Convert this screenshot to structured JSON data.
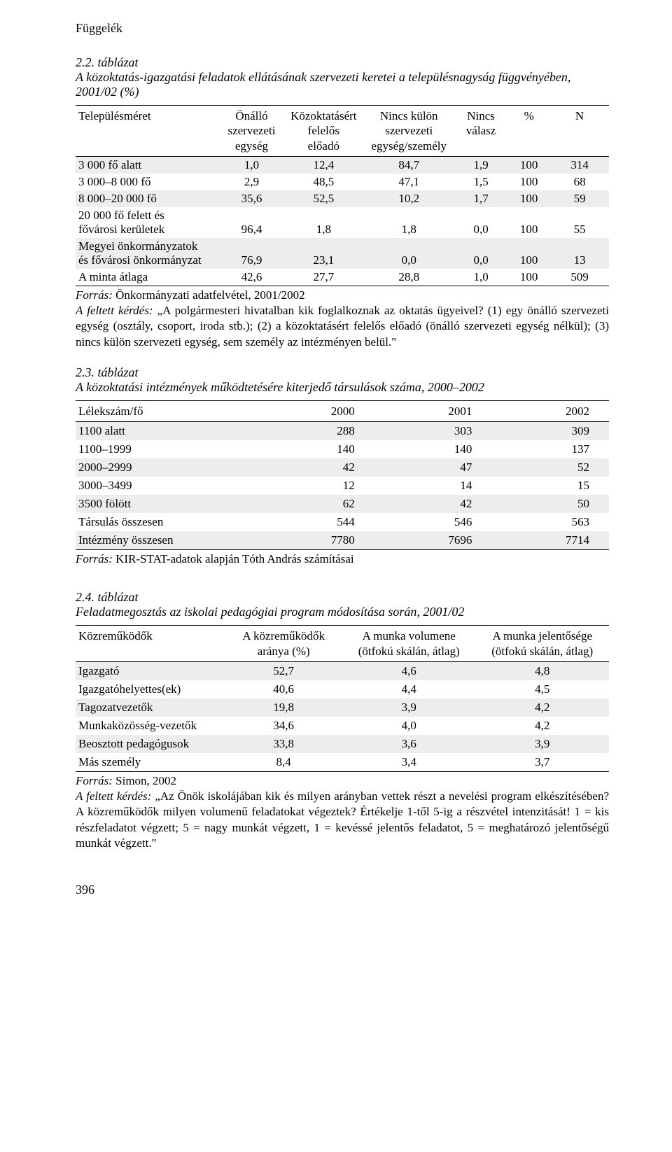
{
  "running_head": "Függelék",
  "page_number": "396",
  "table1": {
    "label": "2.2. táblázat",
    "title": "A közoktatás-igazgatási feladatok ellátásának szervezeti keretei a településnagyság függvényében, 2001/02 (%)",
    "columns": [
      "Településméret",
      "Önálló\nszervezeti\negység",
      "Közoktatásért\nfelelős\nelőadó",
      "Nincs külön\nszervezeti\negység/személy",
      "Nincs\nválasz",
      "%",
      "N"
    ],
    "rows": [
      {
        "label": "3 000 fő alatt",
        "v": [
          "1,0",
          "12,4",
          "84,7",
          "1,9",
          "100",
          "314"
        ],
        "shade": true
      },
      {
        "label": "3 000–8 000 fő",
        "v": [
          "2,9",
          "48,5",
          "47,1",
          "1,5",
          "100",
          "68"
        ],
        "shade": false
      },
      {
        "label": "8 000–20 000 fő",
        "v": [
          "35,6",
          "52,5",
          "10,2",
          "1,7",
          "100",
          "59"
        ],
        "shade": true
      },
      {
        "label": "20 000 fő felett és\nfővárosi kerületek",
        "v": [
          "96,4",
          "1,8",
          "1,8",
          "0,0",
          "100",
          "55"
        ],
        "shade": false,
        "multiline": true
      },
      {
        "label": "Megyei önkormányzatok\nés fővárosi önkormányzat",
        "v": [
          "76,9",
          "23,1",
          "0,0",
          "0,0",
          "100",
          "13"
        ],
        "shade": true,
        "multiline": true
      },
      {
        "label": "A minta átlaga",
        "v": [
          "42,6",
          "27,7",
          "28,8",
          "1,0",
          "100",
          "509"
        ],
        "shade": false
      }
    ],
    "source_prefix": "Forrás:",
    "source_text": " Önkormányzati adatfelvétel, 2001/2002",
    "note_prefix": "A feltett kérdés:",
    "note_text": " „A polgármesteri hivatalban kik foglalkoznak az oktatás ügyeivel? (1) egy önálló szervezeti egység (osztály, csoport, iroda stb.); (2) a közoktatásért felelős előadó (önálló szervezeti egység nélkül); (3) nincs külön szervezeti egység, sem személy az intézményen belül.\""
  },
  "table2": {
    "label": "2.3. táblázat",
    "title": "A közoktatási intézmények működtetésére kiterjedő társulások száma, 2000–2002",
    "columns": [
      "Lélekszám/fő",
      "2000",
      "2001",
      "2002"
    ],
    "rows": [
      {
        "label": "1100 alatt",
        "v": [
          "288",
          "303",
          "309"
        ],
        "shade": true
      },
      {
        "label": "1100–1999",
        "v": [
          "140",
          "140",
          "137"
        ],
        "shade": false
      },
      {
        "label": "2000–2999",
        "v": [
          "42",
          "47",
          "52"
        ],
        "shade": true
      },
      {
        "label": "3000–3499",
        "v": [
          "12",
          "14",
          "15"
        ],
        "shade": false
      },
      {
        "label": "3500 fölött",
        "v": [
          "62",
          "42",
          "50"
        ],
        "shade": true
      },
      {
        "label": "Társulás összesen",
        "v": [
          "544",
          "546",
          "563"
        ],
        "shade": false
      },
      {
        "label": "Intézmény összesen",
        "v": [
          "7780",
          "7696",
          "7714"
        ],
        "shade": true
      }
    ],
    "source_prefix": "Forrás:",
    "source_text": " KIR-STAT-adatok alapján Tóth András számításai"
  },
  "table3": {
    "label": "2.4. táblázat",
    "title": "Feladatmegosztás az iskolai pedagógiai program módosítása során, 2001/02",
    "columns": [
      "Közreműködők",
      "A közreműködők\naránya (%)",
      "A munka volumene\n(ötfokú skálán, átlag)",
      "A munka jelentősége\n(ötfokú skálán, átlag)"
    ],
    "rows": [
      {
        "label": "Igazgató",
        "v": [
          "52,7",
          "4,6",
          "4,8"
        ],
        "shade": true
      },
      {
        "label": "Igazgatóhelyettes(ek)",
        "v": [
          "40,6",
          "4,4",
          "4,5"
        ],
        "shade": false
      },
      {
        "label": "Tagozatvezetők",
        "v": [
          "19,8",
          "3,9",
          "4,2"
        ],
        "shade": true
      },
      {
        "label": "Munkaközösség-vezetők",
        "v": [
          "34,6",
          "4,0",
          "4,2"
        ],
        "shade": false
      },
      {
        "label": "Beosztott pedagógusok",
        "v": [
          "33,8",
          "3,6",
          "3,9"
        ],
        "shade": true
      },
      {
        "label": "Más személy",
        "v": [
          "8,4",
          "3,4",
          "3,7"
        ],
        "shade": false
      }
    ],
    "source_prefix": "Forrás:",
    "source_text": " Simon, 2002",
    "note_prefix": "A feltett kérdés:",
    "note_text": " „Az Önök iskolájában kik és milyen arányban vettek részt a nevelési program elkészítésében? A közreműködők milyen volumenű feladatokat végeztek? Értékelje 1-től 5-ig a részvétel intenzitását! 1 = kis részfeladatot végzett; 5 = nagy munkát végzett, 1 = kevéssé jelentős feladatot, 5 = meghatározó jelentőségű munkát végzett.\""
  }
}
